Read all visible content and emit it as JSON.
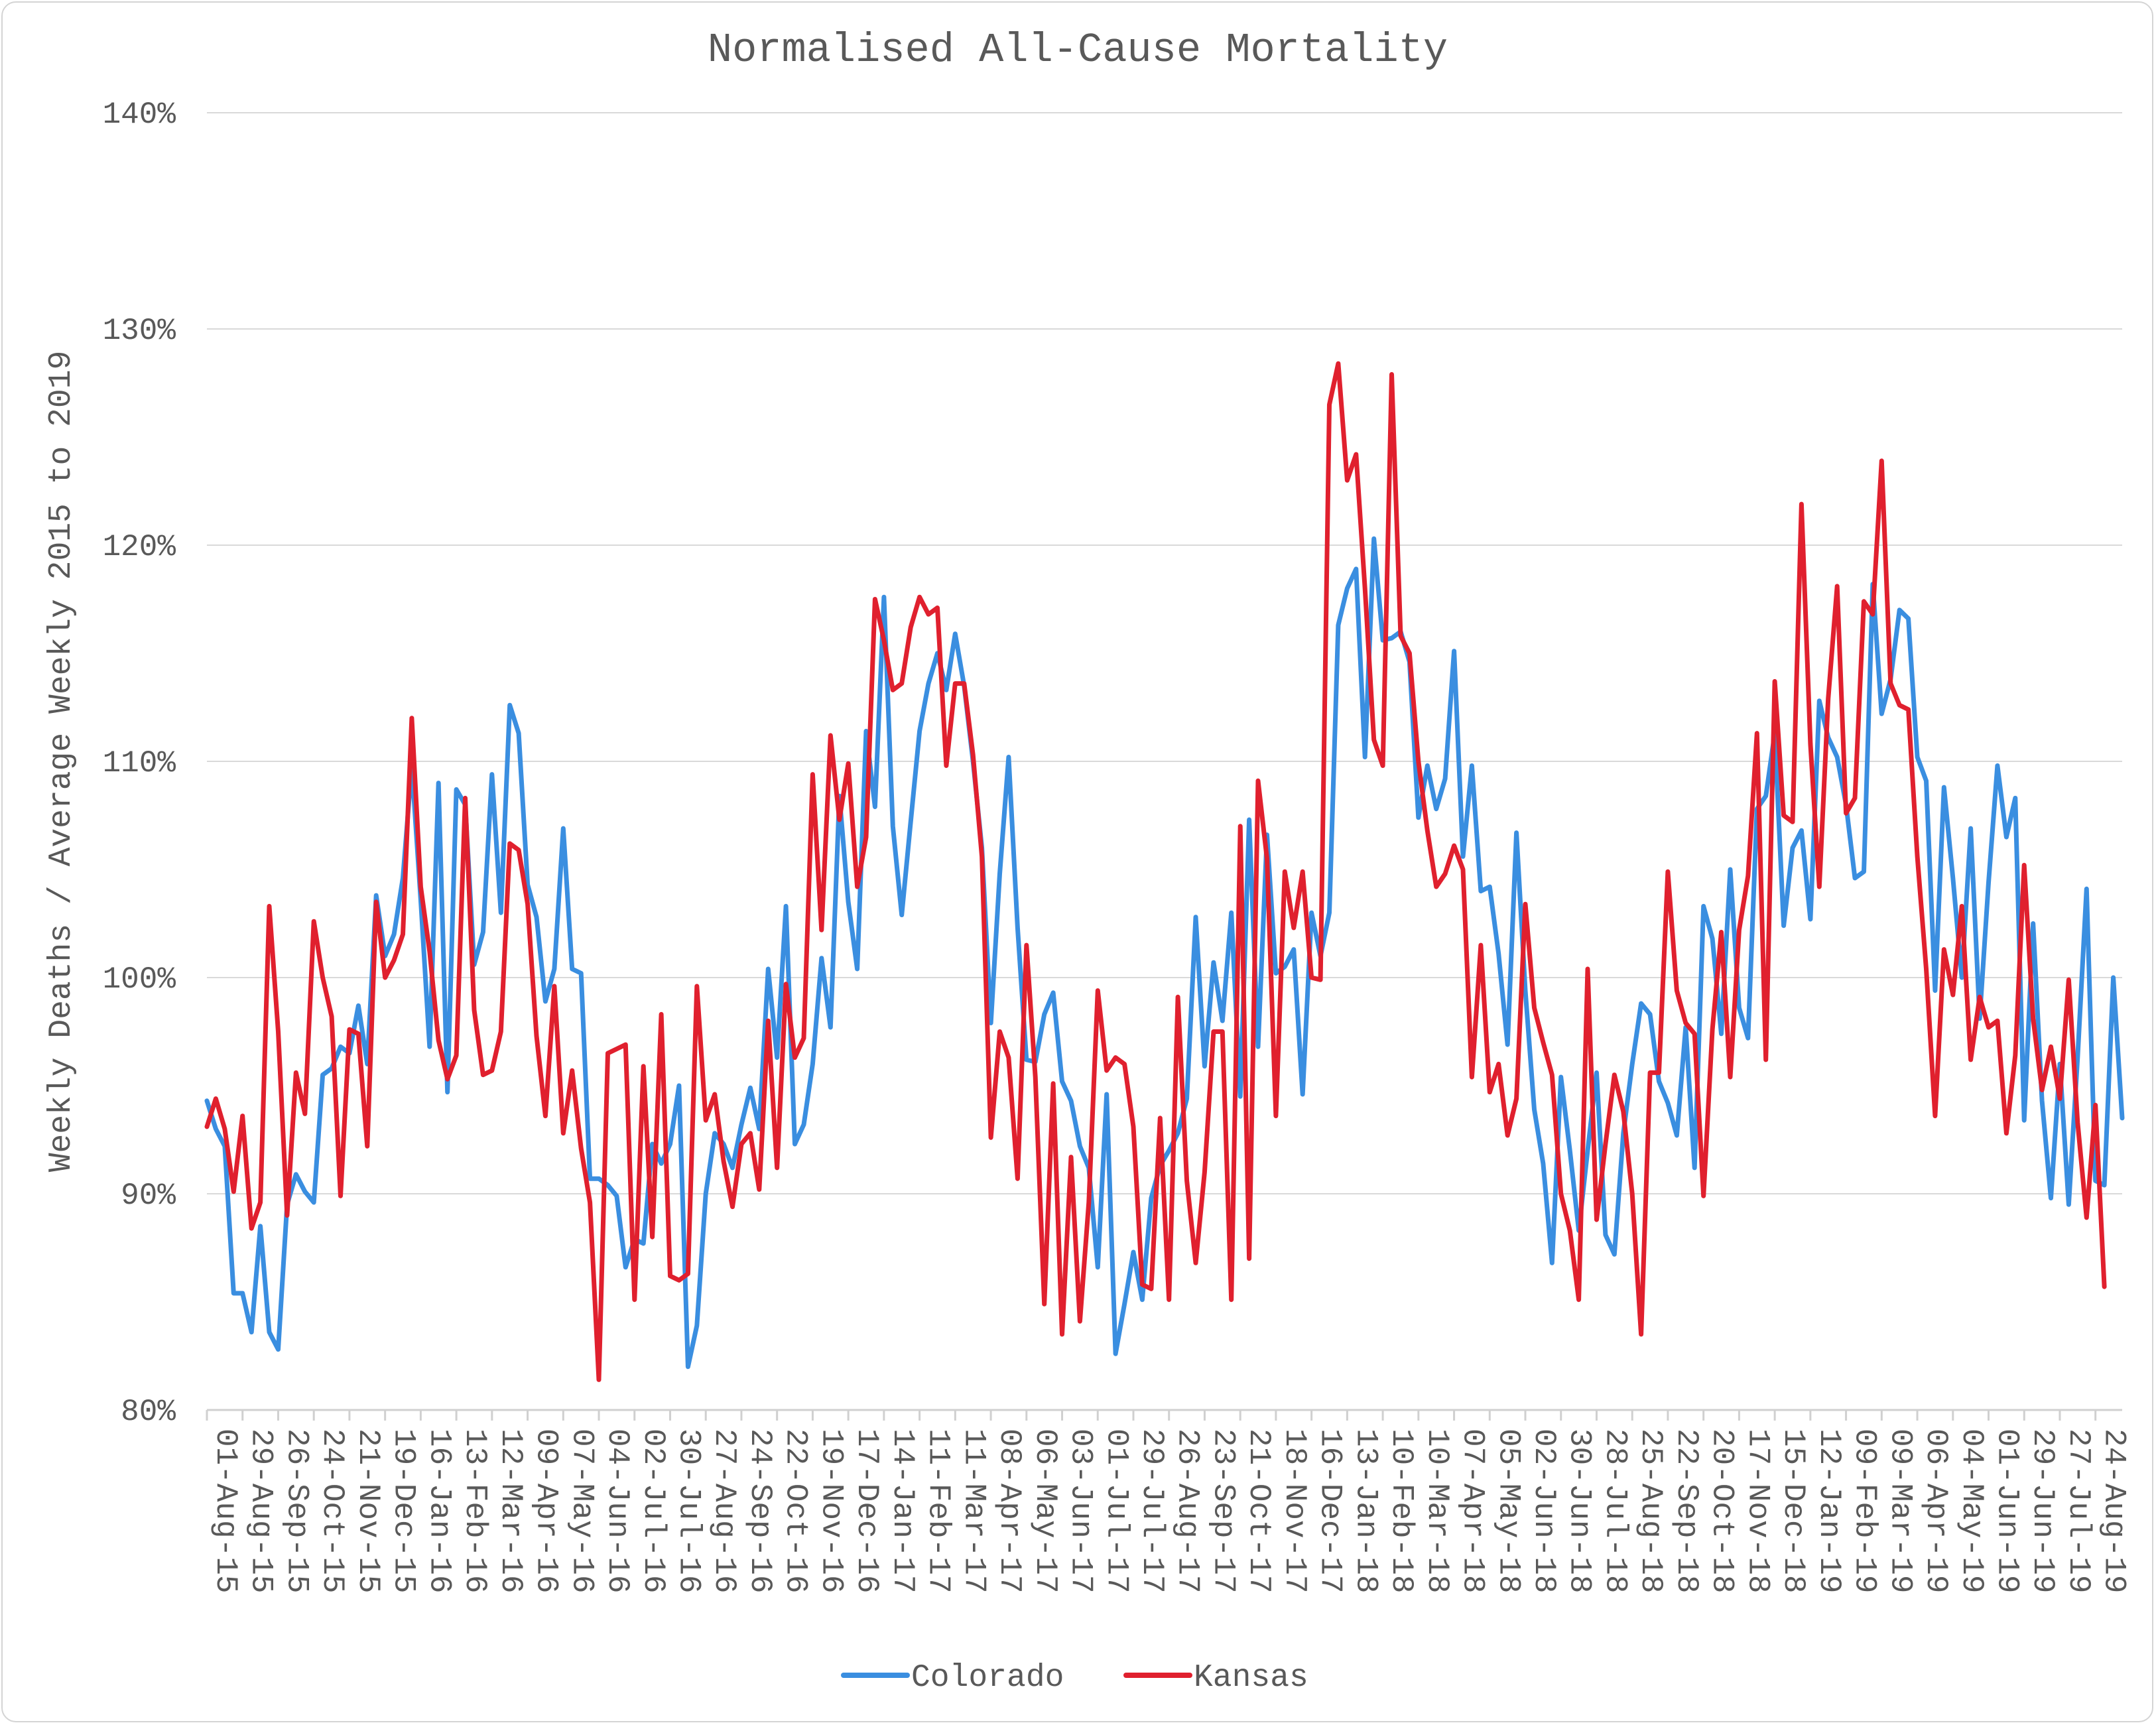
{
  "chart_data": {
    "type": "line",
    "title": "Normalised All-Cause Mortality",
    "xlabel": "",
    "ylabel": "Weekly Deaths / Average Weekly 2015 to 2019",
    "ylim": [
      80,
      140
    ],
    "y_ticks": [
      "80%",
      "90%",
      "100%",
      "110%",
      "120%",
      "130%",
      "140%"
    ],
    "y_tick_values": [
      80,
      90,
      100,
      110,
      120,
      130,
      140
    ],
    "x_tick_labels": [
      "01-Aug-15",
      "29-Aug-15",
      "26-Sep-15",
      "24-Oct-15",
      "21-Nov-15",
      "19-Dec-15",
      "16-Jan-16",
      "13-Feb-16",
      "12-Mar-16",
      "09-Apr-16",
      "07-May-16",
      "04-Jun-16",
      "02-Jul-16",
      "30-Jul-16",
      "27-Aug-16",
      "24-Sep-16",
      "22-Oct-16",
      "19-Nov-16",
      "17-Dec-16",
      "14-Jan-17",
      "11-Feb-17",
      "11-Mar-17",
      "08-Apr-17",
      "06-May-17",
      "03-Jun-17",
      "01-Jul-17",
      "29-Jul-17",
      "26-Aug-17",
      "23-Sep-17",
      "21-Oct-17",
      "18-Nov-17",
      "16-Dec-17",
      "13-Jan-18",
      "10-Feb-18",
      "10-Mar-18",
      "07-Apr-18",
      "05-May-18",
      "02-Jun-18",
      "30-Jun-18",
      "28-Jul-18",
      "25-Aug-18",
      "22-Sep-18",
      "20-Oct-18",
      "17-Nov-18",
      "15-Dec-18",
      "12-Jan-19",
      "09-Feb-19",
      "09-Mar-19",
      "06-Apr-19",
      "04-May-19",
      "01-Jun-19",
      "29-Jun-19",
      "27-Jul-19",
      "24-Aug-19"
    ],
    "x_tick_every": 4,
    "grid": true,
    "legend_position": "bottom",
    "series": [
      {
        "name": "Colorado",
        "color": "#3a8ee0",
        "values": [
          94.3,
          93.0,
          92.2,
          85.4,
          85.4,
          83.6,
          88.5,
          83.6,
          82.8,
          89.5,
          90.9,
          90.1,
          89.6,
          95.5,
          95.8,
          96.8,
          96.5,
          98.7,
          96.0,
          103.8,
          101.0,
          102.0,
          104.6,
          109.8,
          103.6,
          96.8,
          109.0,
          94.7,
          108.7,
          108.0,
          100.6,
          102.1,
          109.4,
          103.0,
          112.6,
          111.3,
          104.3,
          102.8,
          98.9,
          100.4,
          106.9,
          100.4,
          100.2,
          90.7,
          90.7,
          90.4,
          89.9,
          86.6,
          87.9,
          87.7,
          92.3,
          91.4,
          92.3,
          95.0,
          82.0,
          83.9,
          90.0,
          92.8,
          92.3,
          91.2,
          93.2,
          94.9,
          93.0,
          100.4,
          96.3,
          103.3,
          92.3,
          93.2,
          96.0,
          100.9,
          97.7,
          108.4,
          103.5,
          100.4,
          111.4,
          107.9,
          117.6,
          107.0,
          102.9,
          107.2,
          111.4,
          113.6,
          115.0,
          113.3,
          115.9,
          113.5,
          110.0,
          106.0,
          97.9,
          104.8,
          110.2,
          102.3,
          96.2,
          96.1,
          98.3,
          99.3,
          95.2,
          94.3,
          92.2,
          91.2,
          86.6,
          94.6,
          82.6,
          84.9,
          87.3,
          85.1,
          89.8,
          91.3,
          92.0,
          92.8,
          94.4,
          102.8,
          95.9,
          100.7,
          98.0,
          103.0,
          94.5,
          107.3,
          96.8,
          106.6,
          100.2,
          100.5,
          101.3,
          94.6,
          103.0,
          101.0,
          103.0,
          116.3,
          118.0,
          118.9,
          110.2,
          120.3,
          115.6,
          115.7,
          116.0,
          114.6,
          107.4,
          109.8,
          107.8,
          109.2,
          115.1,
          105.6,
          109.8,
          104.0,
          104.2,
          101.1,
          96.9,
          106.7,
          99.4,
          93.9,
          91.4,
          86.8,
          95.4,
          92.0,
          88.3,
          92.0,
          95.6,
          88.1,
          87.2,
          92.8,
          96.0,
          98.8,
          98.3,
          95.2,
          94.2,
          92.7,
          97.7,
          91.2,
          103.3,
          101.8,
          97.4,
          105.0,
          98.6,
          97.2,
          107.8,
          108.4,
          111.3,
          102.4,
          106.0,
          106.8,
          102.7,
          112.8,
          111.1,
          110.2,
          108.0,
          104.6,
          104.9,
          118.2,
          112.2,
          113.8,
          117.0,
          116.6,
          110.2,
          109.1,
          99.4,
          108.8,
          104.6,
          100.0,
          106.9,
          98.1,
          104.4,
          109.8,
          106.5,
          108.3,
          93.4,
          102.5,
          94.3,
          89.8,
          96.0,
          89.5,
          96.3,
          104.1,
          90.6,
          90.4,
          100.0,
          93.5
        ]
      },
      {
        "name": "Kansas",
        "color": "#e0202e",
        "values": [
          93.1,
          94.4,
          93.0,
          90.1,
          93.6,
          88.4,
          89.6,
          103.3,
          97.5,
          89.0,
          95.6,
          93.7,
          102.6,
          100.0,
          98.2,
          89.9,
          97.6,
          97.4,
          92.2,
          103.5,
          100.0,
          100.8,
          102.0,
          112.0,
          104.2,
          101.2,
          97.1,
          95.3,
          96.4,
          108.3,
          98.5,
          95.5,
          95.7,
          97.5,
          106.2,
          105.9,
          103.4,
          97.3,
          93.6,
          99.6,
          92.8,
          95.7,
          92.1,
          89.6,
          81.4,
          96.5,
          96.7,
          96.9,
          85.1,
          95.9,
          88.0,
          98.3,
          86.2,
          86.0,
          86.3,
          99.6,
          93.4,
          94.6,
          91.5,
          89.4,
          92.3,
          92.8,
          90.2,
          98.0,
          91.2,
          99.7,
          96.3,
          97.2,
          109.4,
          102.2,
          111.2,
          107.3,
          109.9,
          104.2,
          106.5,
          117.5,
          115.6,
          113.3,
          113.6,
          116.2,
          117.6,
          116.8,
          117.1,
          109.8,
          113.6,
          113.6,
          110.3,
          105.6,
          92.6,
          97.5,
          96.3,
          90.7,
          101.5,
          95.4,
          84.9,
          95.1,
          83.5,
          91.7,
          84.1,
          89.6,
          99.4,
          95.7,
          96.3,
          96.0,
          93.1,
          85.8,
          85.6,
          93.5,
          85.1,
          99.1,
          90.6,
          86.8,
          91.0,
          97.5,
          97.5,
          85.1,
          107.0,
          87.0,
          109.1,
          105.5,
          93.6,
          104.9,
          102.3,
          104.9,
          100.0,
          99.9,
          126.5,
          128.4,
          123.0,
          124.2,
          118.0,
          111.0,
          109.8,
          127.9,
          115.8,
          115.0,
          110.0,
          106.8,
          104.2,
          104.8,
          106.1,
          105.0,
          95.4,
          101.5,
          94.7,
          96.0,
          92.7,
          94.4,
          103.4,
          98.6,
          97.0,
          95.5,
          90.0,
          88.3,
          85.1,
          100.4,
          88.8,
          92.3,
          95.5,
          93.8,
          90.0,
          83.5,
          95.6,
          95.6,
          104.9,
          99.4,
          97.9,
          97.4,
          89.9,
          97.6,
          102.1,
          95.4,
          102.2,
          104.7,
          111.3,
          96.2,
          113.7,
          107.5,
          107.2,
          121.9,
          110.8,
          104.2,
          112.9,
          118.1,
          107.6,
          108.3,
          117.4,
          116.8,
          123.9,
          113.6,
          112.6,
          112.4,
          105.6,
          100.4,
          93.6,
          101.3,
          99.2,
          103.3,
          96.2,
          99.1,
          97.7,
          98.0,
          92.8,
          96.4,
          105.2,
          98.1,
          94.8,
          96.8,
          94.4,
          99.9,
          93.3,
          88.9,
          94.1,
          85.7
        ]
      }
    ]
  }
}
